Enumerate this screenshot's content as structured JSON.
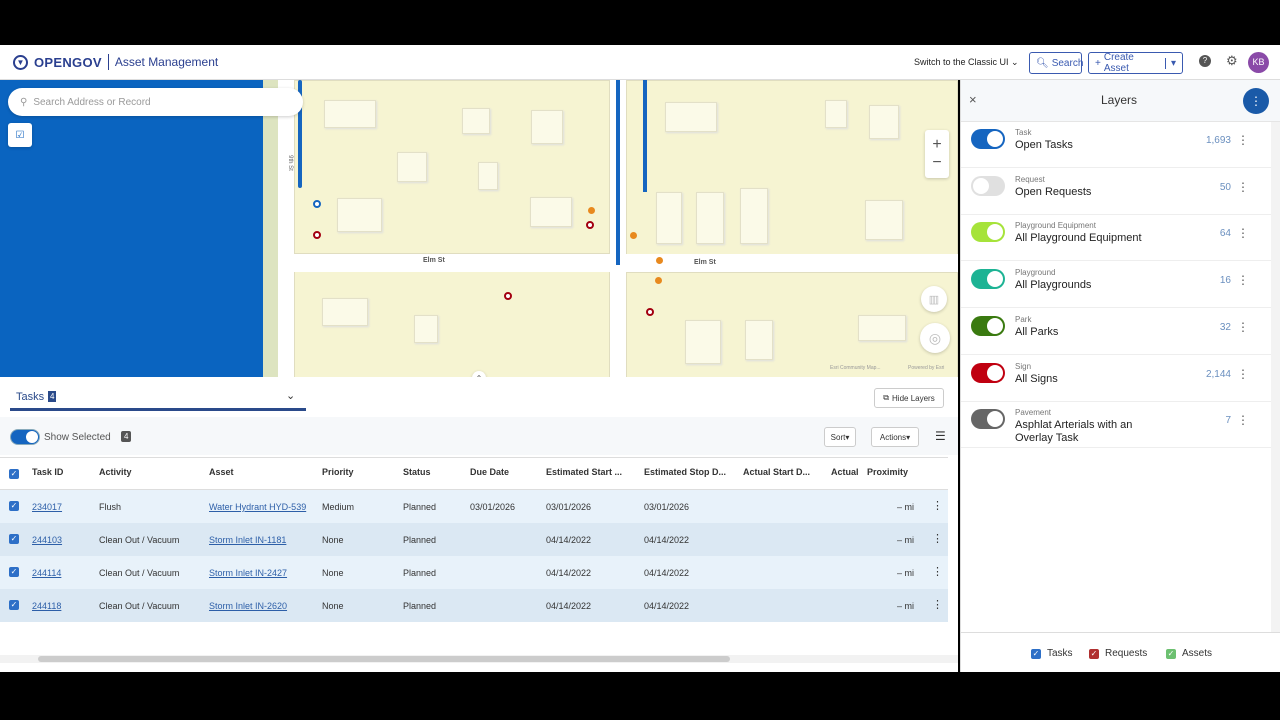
{
  "header": {
    "brand": "OPENGOV",
    "app_name": "Asset Management",
    "classic_ui": "Switch to the Classic UI",
    "search": "Search",
    "create_asset": "Create Asset",
    "avatar": "KB"
  },
  "map": {
    "search_placeholder": "Search Address or Record",
    "streets": {
      "ninth": "9th St",
      "elm_left": "Elm St",
      "elm_right": "Elm St"
    },
    "attribution_left": "Esri Community Map...",
    "attribution_right": "Powered by Esri",
    "zoom_in": "+",
    "zoom_out": "−"
  },
  "tasks_panel": {
    "tab_label": "Tasks",
    "tab_count": "4",
    "hide_layers": "Hide Layers",
    "show_selected": "Show Selected",
    "selected_count": "4",
    "sort": "Sort",
    "actions": "Actions",
    "columns": [
      "Task ID",
      "Activity",
      "Asset",
      "Priority",
      "Status",
      "Due Date",
      "Estimated Start ...",
      "Estimated Stop D...",
      "Actual Start D...",
      "Actual",
      "Proximity"
    ],
    "rows": [
      {
        "id": "234017",
        "activity": "Flush",
        "asset": "Water Hydrant HYD-539",
        "priority": "Medium",
        "status": "Planned",
        "due": "03/01/2026",
        "est_start": "03/01/2026",
        "est_stop": "03/01/2026",
        "proximity": "– mi"
      },
      {
        "id": "244103",
        "activity": "Clean Out / Vacuum",
        "asset": "Storm Inlet IN-1181",
        "priority": "None",
        "status": "Planned",
        "due": "",
        "est_start": "04/14/2022",
        "est_stop": "04/14/2022",
        "proximity": "– mi"
      },
      {
        "id": "244114",
        "activity": "Clean Out / Vacuum",
        "asset": "Storm Inlet IN-2427",
        "priority": "None",
        "status": "Planned",
        "due": "",
        "est_start": "04/14/2022",
        "est_stop": "04/14/2022",
        "proximity": "– mi"
      },
      {
        "id": "244118",
        "activity": "Clean Out / Vacuum",
        "asset": "Storm Inlet IN-2620",
        "priority": "None",
        "status": "Planned",
        "due": "",
        "est_start": "04/14/2022",
        "est_stop": "04/14/2022",
        "proximity": "– mi"
      }
    ]
  },
  "layers": {
    "title": "Layers",
    "items": [
      {
        "type": "Task",
        "name": "Open Tasks",
        "count": "1,693",
        "color": "#1565c0",
        "on": true
      },
      {
        "type": "Request",
        "name": "Open Requests",
        "count": "50",
        "color": "#e0e0e0",
        "on": false
      },
      {
        "type": "Playground Equipment",
        "name": "All Playground Equipment",
        "count": "64",
        "color": "#a6e33a",
        "on": true
      },
      {
        "type": "Playground",
        "name": "All Playgrounds",
        "count": "16",
        "color": "#1db394",
        "on": true
      },
      {
        "type": "Park",
        "name": "All Parks",
        "count": "32",
        "color": "#3a7a10",
        "on": true
      },
      {
        "type": "Sign",
        "name": "All Signs",
        "count": "2,144",
        "color": "#c00010",
        "on": true
      },
      {
        "type": "Pavement",
        "name": "Asphlat Arterials with an Overlay Task",
        "count": "7",
        "color": "#666666",
        "on": true
      }
    ],
    "filters": [
      "Tasks",
      "Requests",
      "Assets"
    ],
    "filter_colors": [
      "#2d6fc7",
      "#b03030",
      "#6cc070"
    ]
  }
}
